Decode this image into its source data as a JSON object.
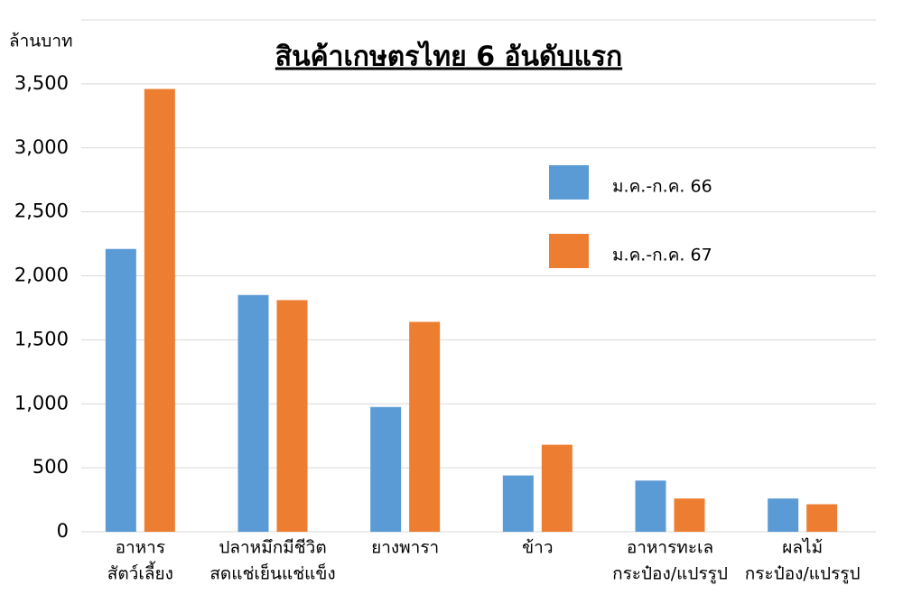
{
  "chart_data": {
    "type": "bar",
    "title": "สินค้าเกษตรไทย 6 อันดับแรก",
    "y_label": "ล้านบาท",
    "categories": [
      [
        "อาหาร",
        "สัตว์เลี้ยง"
      ],
      [
        "ปลาหมึกมีชีวิต",
        "สดแช่เย็นแช่แข็ง"
      ],
      [
        "ยางพารา"
      ],
      [
        "ข้าว"
      ],
      [
        "อาหารทะเล",
        "กระป๋อง/แปรรูป"
      ],
      [
        "ผลไม้",
        "กระป๋อง/แปรรูป"
      ]
    ],
    "series": [
      {
        "name": "ม.ค.-ก.ค. 66",
        "color": "#5b9bd5",
        "values": [
          2210,
          1850,
          975,
          440,
          400,
          260
        ]
      },
      {
        "name": "ม.ค.-ก.ค. 67",
        "color": "#ed7d31",
        "values": [
          3460,
          1810,
          1640,
          680,
          260,
          215
        ]
      }
    ],
    "ylim": [
      0,
      4000
    ],
    "yticks": [
      0,
      500,
      {
        "value": 1000,
        "label": "1,000"
      },
      {
        "value": 1500,
        "label": "1,500"
      },
      {
        "value": 2000,
        "label": "2,000"
      },
      {
        "value": 2500,
        "label": "2,500"
      },
      {
        "value": 3000,
        "label": "3,000"
      },
      {
        "value": 3500,
        "label": "3,500"
      }
    ],
    "grid": true
  }
}
